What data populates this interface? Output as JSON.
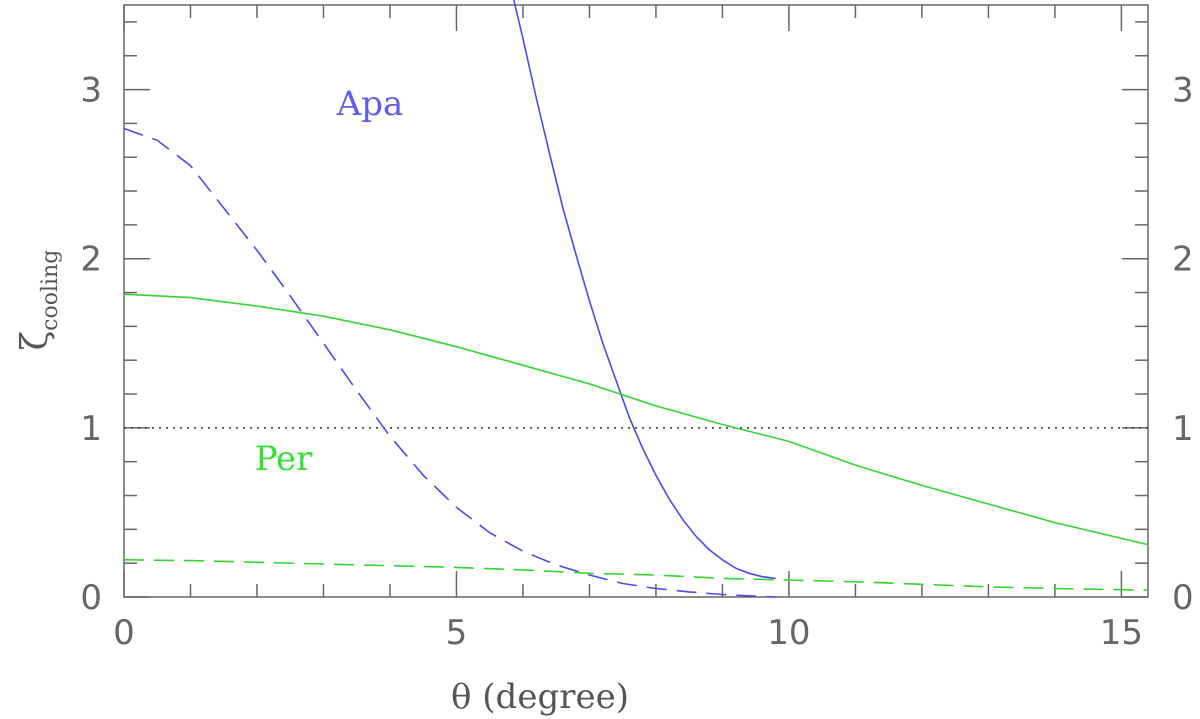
{
  "chart_data": {
    "type": "line",
    "xlabel": "θ (degree)",
    "ylabel_main": "ζ",
    "ylabel_sub": "cooling",
    "xlim": [
      0,
      15.4
    ],
    "ylim": [
      0,
      3.5
    ],
    "x_ticks_major": [
      0,
      5,
      10,
      15
    ],
    "x_tick_labels": [
      "0",
      "5",
      "10",
      "15"
    ],
    "x_minor_step": 1,
    "y_ticks_major": [
      0,
      1,
      2,
      3
    ],
    "y_tick_labels": [
      "0",
      "1",
      "2",
      "3"
    ],
    "y_minor_step": 0.2,
    "grid": false,
    "reference_line": {
      "y": 1,
      "style": "dotted",
      "color": "#333333"
    },
    "annotations": [
      {
        "text": "Apa",
        "x": 3.7,
        "y": 2.85,
        "color": "#5c5cf0"
      },
      {
        "text": "Per",
        "x": 2.4,
        "y": 0.75,
        "color": "#33e033"
      }
    ],
    "series": [
      {
        "label": "Apa",
        "style": "solid",
        "color": "#4a4af0",
        "x": [
          5.85,
          6.0,
          6.2,
          6.4,
          6.6,
          6.8,
          7.0,
          7.2,
          7.4,
          7.6,
          7.8,
          8.0,
          8.2,
          8.4,
          8.6,
          8.8,
          9.0,
          9.2,
          9.4,
          9.6,
          9.8
        ],
        "y": [
          3.55,
          3.3,
          2.95,
          2.62,
          2.3,
          2.02,
          1.75,
          1.5,
          1.28,
          1.06,
          0.88,
          0.72,
          0.58,
          0.46,
          0.36,
          0.28,
          0.22,
          0.17,
          0.14,
          0.12,
          0.11
        ]
      },
      {
        "label": "Apa",
        "style": "dashed",
        "color": "#4a4af0",
        "x": [
          0,
          0.5,
          1.0,
          1.5,
          2.0,
          2.5,
          3.0,
          3.5,
          4.0,
          4.5,
          5.0,
          5.5,
          6.0,
          6.5,
          7.0,
          7.5,
          8.0,
          8.5,
          9.0,
          9.5,
          9.8
        ],
        "y": [
          2.77,
          2.7,
          2.55,
          2.3,
          2.05,
          1.78,
          1.5,
          1.22,
          0.95,
          0.72,
          0.53,
          0.38,
          0.27,
          0.19,
          0.13,
          0.08,
          0.05,
          0.03,
          0.015,
          0.005,
          0.0
        ]
      },
      {
        "label": "Per",
        "style": "solid",
        "color": "#33d633",
        "x": [
          0,
          1,
          2,
          3,
          4,
          5,
          6,
          7,
          8,
          9,
          10,
          11,
          12,
          13,
          14,
          15.4
        ],
        "y": [
          1.79,
          1.77,
          1.72,
          1.66,
          1.58,
          1.48,
          1.37,
          1.26,
          1.13,
          1.02,
          0.92,
          0.78,
          0.66,
          0.55,
          0.44,
          0.31
        ]
      },
      {
        "label": "Per",
        "style": "dashed",
        "color": "#33d633",
        "x": [
          0,
          1,
          2,
          3,
          4,
          5,
          6,
          7,
          8,
          9,
          10,
          11,
          12,
          13,
          14,
          15.4
        ],
        "y": [
          0.22,
          0.215,
          0.205,
          0.195,
          0.185,
          0.175,
          0.16,
          0.14,
          0.13,
          0.11,
          0.1,
          0.09,
          0.075,
          0.06,
          0.05,
          0.04
        ]
      }
    ]
  }
}
